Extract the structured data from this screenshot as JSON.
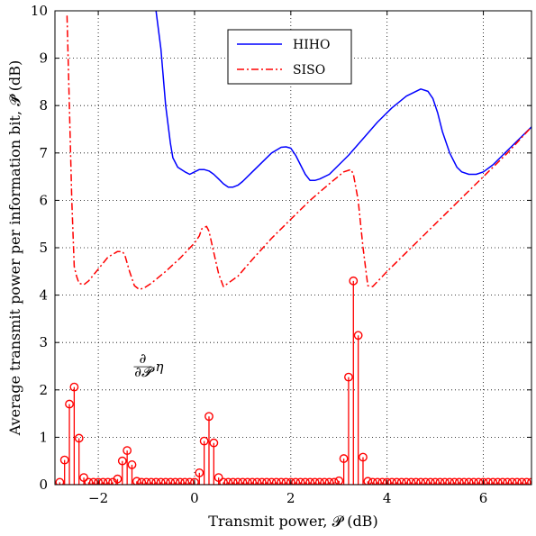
{
  "chart_data": {
    "type": "line",
    "xlabel": "Transmit power, 𝓟 (dB)",
    "ylabel": "Average transmit power per information bit, 𝓟̄ (dB)",
    "xlim": [
      -2.9,
      7
    ],
    "ylim": [
      0,
      10
    ],
    "xticks": [
      -2,
      0,
      2,
      4,
      6
    ],
    "xtick_labels": [
      "−2",
      "0",
      "2",
      "4",
      "6"
    ],
    "yticks": [
      0,
      1,
      2,
      3,
      4,
      5,
      6,
      7,
      8,
      9,
      10
    ],
    "ytick_labels": [
      "0",
      "1",
      "2",
      "3",
      "4",
      "5",
      "6",
      "7",
      "8",
      "9",
      "10"
    ],
    "grid": true,
    "legend_position": "top-center",
    "series": [
      {
        "name": "HIHO",
        "style": "solid",
        "color": "#0000ff",
        "x": [
          -0.8,
          -0.7,
          -0.6,
          -0.5,
          -0.45,
          -0.35,
          -0.2,
          -0.1,
          0.0,
          0.1,
          0.2,
          0.3,
          0.4,
          0.5,
          0.6,
          0.7,
          0.8,
          0.9,
          1.0,
          1.2,
          1.4,
          1.6,
          1.8,
          1.9,
          2.0,
          2.1,
          2.2,
          2.3,
          2.4,
          2.5,
          2.6,
          2.8,
          3.0,
          3.2,
          3.5,
          3.8,
          4.1,
          4.4,
          4.7,
          4.85,
          4.95,
          5.05,
          5.15,
          5.3,
          5.45,
          5.55,
          5.7,
          5.85,
          6.0,
          6.2,
          6.4,
          6.6,
          6.8,
          7.0
        ],
        "y": [
          10.0,
          9.2,
          8.0,
          7.2,
          6.9,
          6.7,
          6.6,
          6.55,
          6.6,
          6.65,
          6.65,
          6.62,
          6.55,
          6.45,
          6.35,
          6.28,
          6.28,
          6.32,
          6.4,
          6.6,
          6.8,
          7.0,
          7.12,
          7.13,
          7.1,
          6.95,
          6.75,
          6.55,
          6.42,
          6.42,
          6.45,
          6.55,
          6.75,
          6.95,
          7.3,
          7.65,
          7.95,
          8.2,
          8.35,
          8.3,
          8.15,
          7.85,
          7.45,
          7.0,
          6.7,
          6.6,
          6.55,
          6.55,
          6.6,
          6.75,
          6.95,
          7.15,
          7.35,
          7.55
        ]
      },
      {
        "name": "SISO",
        "style": "dashdot",
        "color": "#ff0000",
        "x": [
          -2.65,
          -2.6,
          -2.55,
          -2.5,
          -2.45,
          -2.4,
          -2.3,
          -2.2,
          -2.0,
          -1.8,
          -1.6,
          -1.5,
          -1.45,
          -1.35,
          -1.25,
          -1.15,
          -1.05,
          -0.9,
          -0.6,
          -0.3,
          0.0,
          0.1,
          0.15,
          0.25,
          0.3,
          0.4,
          0.5,
          0.6,
          0.9,
          1.2,
          1.6,
          2.0,
          2.4,
          2.8,
          3.1,
          3.25,
          3.3,
          3.4,
          3.5,
          3.6,
          3.7,
          4.0,
          4.5,
          5.0,
          5.5,
          6.0,
          6.5,
          7.0
        ],
        "y": [
          9.9,
          8.0,
          6.0,
          4.6,
          4.4,
          4.25,
          4.22,
          4.3,
          4.55,
          4.8,
          4.92,
          4.92,
          4.85,
          4.5,
          4.2,
          4.12,
          4.15,
          4.25,
          4.5,
          4.78,
          5.1,
          5.25,
          5.4,
          5.45,
          5.35,
          4.9,
          4.45,
          4.18,
          4.4,
          4.75,
          5.2,
          5.6,
          6.0,
          6.35,
          6.6,
          6.65,
          6.55,
          6.0,
          5.0,
          4.2,
          4.18,
          4.5,
          5.0,
          5.5,
          6.0,
          6.5,
          7.0,
          7.55
        ]
      },
      {
        "name": "∂/∂𝓟 η",
        "style": "stem",
        "color": "#ff0000",
        "x": [
          -2.8,
          -2.7,
          -2.6,
          -2.5,
          -2.4,
          -2.3,
          -2.2,
          -2.1,
          -2.0,
          -1.9,
          -1.8,
          -1.7,
          -1.6,
          -1.5,
          -1.4,
          -1.3,
          -1.2,
          -1.1,
          -1.0,
          -0.9,
          -0.8,
          -0.7,
          -0.6,
          -0.5,
          -0.4,
          -0.3,
          -0.2,
          -0.1,
          0.0,
          0.1,
          0.2,
          0.3,
          0.4,
          0.5,
          0.6,
          0.7,
          0.8,
          0.9,
          1.0,
          1.1,
          1.2,
          1.3,
          1.4,
          1.5,
          1.6,
          1.7,
          1.8,
          1.9,
          2.0,
          2.1,
          2.2,
          2.3,
          2.4,
          2.5,
          2.6,
          2.7,
          2.8,
          2.9,
          3.0,
          3.1,
          3.2,
          3.3,
          3.4,
          3.5,
          3.6,
          3.7,
          3.8,
          3.9,
          4.0,
          4.1,
          4.2,
          4.3,
          4.4,
          4.5,
          4.6,
          4.7,
          4.8,
          4.9,
          5.0,
          5.1,
          5.2,
          5.3,
          5.4,
          5.5,
          5.6,
          5.7,
          5.8,
          5.9,
          6.0,
          6.1,
          6.2,
          6.3,
          6.4,
          6.5,
          6.6,
          6.7,
          6.8,
          6.9,
          7.0
        ],
        "y": [
          0.05,
          0.52,
          1.7,
          2.06,
          0.98,
          0.15,
          0.05,
          0.05,
          0.05,
          0.05,
          0.05,
          0.05,
          0.12,
          0.5,
          0.72,
          0.42,
          0.07,
          0.05,
          0.05,
          0.05,
          0.05,
          0.05,
          0.05,
          0.05,
          0.05,
          0.05,
          0.05,
          0.05,
          0.05,
          0.25,
          0.92,
          1.44,
          0.88,
          0.15,
          0.05,
          0.05,
          0.05,
          0.05,
          0.05,
          0.05,
          0.05,
          0.05,
          0.05,
          0.05,
          0.05,
          0.05,
          0.05,
          0.05,
          0.05,
          0.05,
          0.05,
          0.05,
          0.05,
          0.05,
          0.05,
          0.05,
          0.05,
          0.05,
          0.08,
          0.55,
          2.27,
          4.3,
          3.15,
          0.58,
          0.07,
          0.05,
          0.05,
          0.05,
          0.05,
          0.05,
          0.05,
          0.05,
          0.05,
          0.05,
          0.05,
          0.05,
          0.05,
          0.05,
          0.05,
          0.05,
          0.05,
          0.05,
          0.05,
          0.05,
          0.05,
          0.05,
          0.05,
          0.05,
          0.05,
          0.05,
          0.05,
          0.05,
          0.05,
          0.05,
          0.05,
          0.05,
          0.05,
          0.05,
          0.05
        ]
      }
    ],
    "legend": [
      "HIHO",
      "SISO"
    ],
    "annotation": {
      "text": "∂/∂𝓟 η",
      "x": -1.3,
      "y": 2.45
    }
  }
}
